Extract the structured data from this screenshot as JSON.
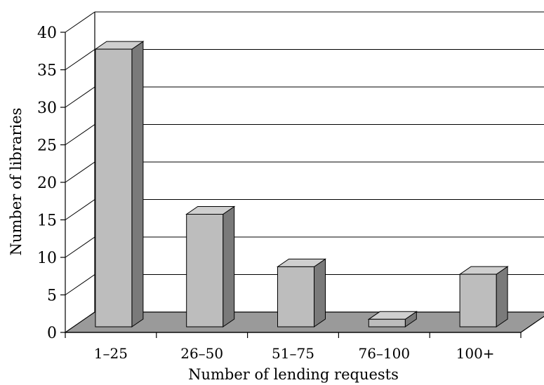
{
  "chart_data": {
    "type": "bar",
    "style": "3d",
    "categories": [
      "1–25",
      "26–50",
      "51–75",
      "76–100",
      "100+"
    ],
    "values": [
      37,
      15,
      8,
      1,
      7
    ],
    "xlabel": "Number of lending requests",
    "ylabel": "Number of libraries",
    "ylim": [
      0,
      40
    ],
    "yticks": [
      0,
      5,
      10,
      15,
      20,
      25,
      30,
      35,
      40
    ],
    "grid": true,
    "legend": "none",
    "colors": {
      "bar_front": "#bdbdbd",
      "bar_side": "#7a7a7a",
      "bar_top": "#cfcfcf",
      "floor": "#9a9a9a"
    }
  }
}
